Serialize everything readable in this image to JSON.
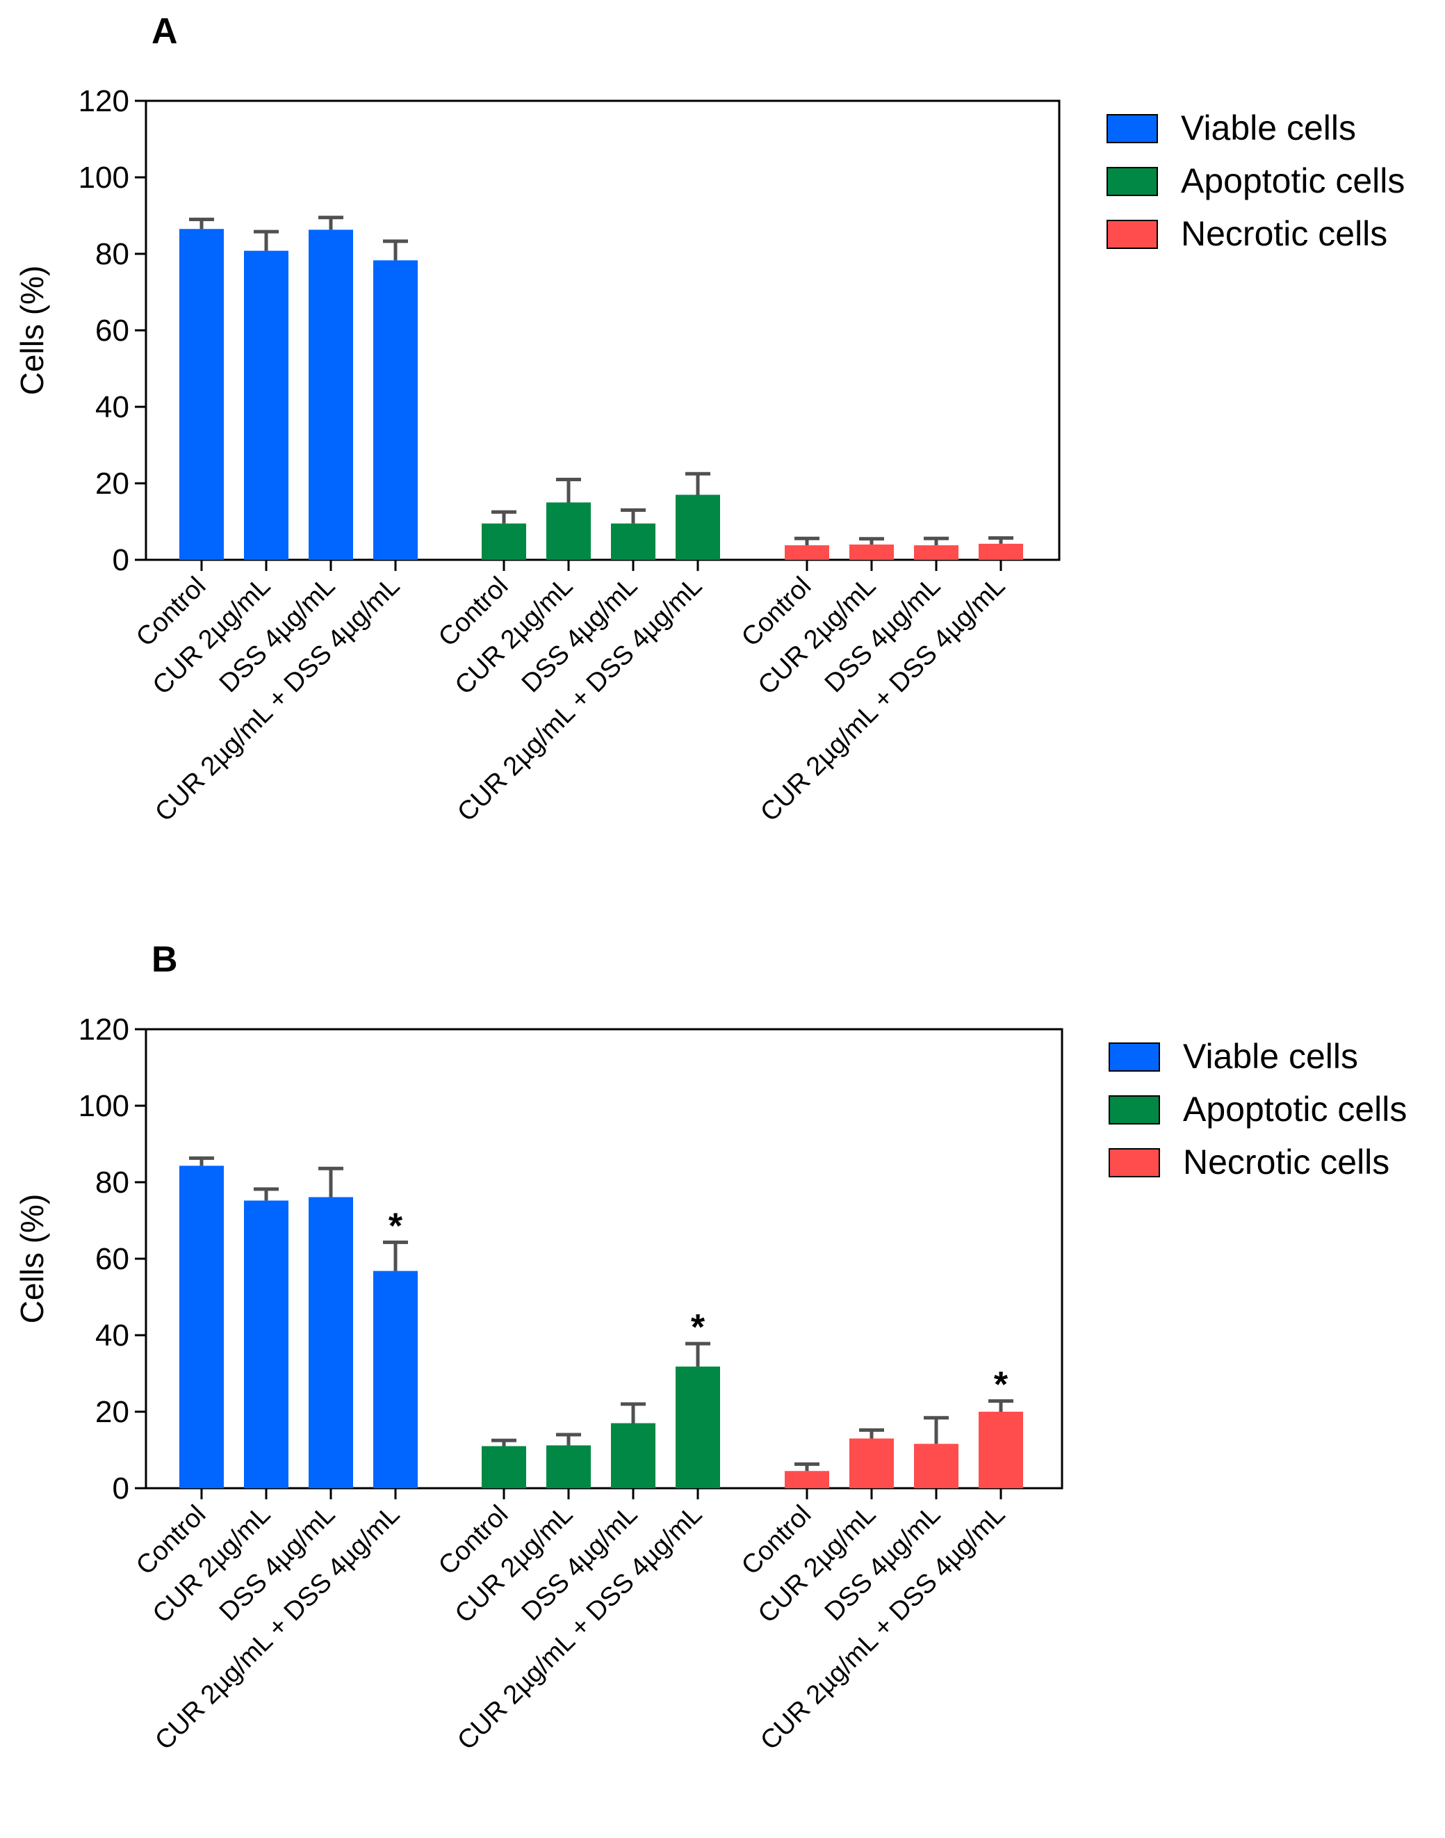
{
  "colors": {
    "viable": "#0066FF",
    "apoptotic": "#008844",
    "necrotic": "#FF4D4D",
    "errorbar": "#505050",
    "axis": "#000000"
  },
  "chart_data": [
    {
      "type": "bar",
      "panel_label": "A",
      "ylabel": "Cells (%)",
      "ylim": [
        0,
        120
      ],
      "yticks": [
        "0",
        "20",
        "40",
        "60",
        "80",
        "100",
        "120"
      ],
      "legend_position": "right",
      "categories": [
        "Control",
        "CUR 2µg/mL",
        "DSS 4µg/mL",
        "CUR 2µg/mL + DSS 4µg/mL"
      ],
      "series": [
        {
          "name": "Viable cells",
          "color_key": "viable",
          "values": [
            86.5,
            80.8,
            86.3,
            78.3
          ],
          "errors": [
            2.5,
            5.0,
            3.2,
            5.0
          ],
          "significance": [
            "",
            "",
            "",
            ""
          ]
        },
        {
          "name": "Apoptotic cells",
          "color_key": "apoptotic",
          "values": [
            9.5,
            15.0,
            9.5,
            17.0
          ],
          "errors": [
            3.0,
            6.0,
            3.5,
            5.5
          ],
          "significance": [
            "",
            "",
            "",
            ""
          ]
        },
        {
          "name": "Necrotic cells",
          "color_key": "necrotic",
          "values": [
            3.8,
            4.0,
            3.8,
            4.2
          ],
          "errors": [
            1.8,
            1.5,
            1.8,
            1.5
          ],
          "significance": [
            "",
            "",
            "",
            ""
          ]
        }
      ]
    },
    {
      "type": "bar",
      "panel_label": "B",
      "ylabel": "Cells (%)",
      "ylim": [
        0,
        120
      ],
      "yticks": [
        "0",
        "20",
        "40",
        "60",
        "80",
        "100",
        "120"
      ],
      "legend_position": "right",
      "categories": [
        "Control",
        "CUR 2µg/mL",
        "DSS 4µg/mL",
        "CUR 2µg/mL + DSS 4µg/mL"
      ],
      "series": [
        {
          "name": "Viable cells",
          "color_key": "viable",
          "values": [
            84.3,
            75.2,
            76.1,
            56.8
          ],
          "errors": [
            2.0,
            3.0,
            7.5,
            7.5
          ],
          "significance": [
            "",
            "",
            "",
            "*"
          ]
        },
        {
          "name": "Apoptotic cells",
          "color_key": "apoptotic",
          "values": [
            11.0,
            11.2,
            17.0,
            31.8
          ],
          "errors": [
            1.5,
            2.8,
            5.0,
            6.0
          ],
          "significance": [
            "",
            "",
            "",
            "*"
          ]
        },
        {
          "name": "Necrotic cells",
          "color_key": "necrotic",
          "values": [
            4.5,
            13.0,
            11.6,
            20.0
          ],
          "errors": [
            1.8,
            2.2,
            6.8,
            2.8
          ],
          "significance": [
            "",
            "",
            "",
            "*"
          ]
        }
      ]
    }
  ]
}
